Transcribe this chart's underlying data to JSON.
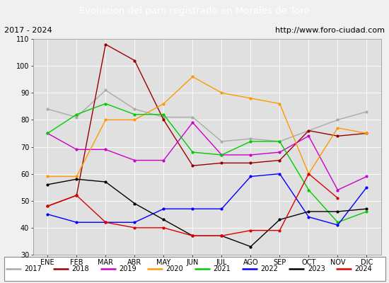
{
  "title": "Evolucion del paro registrado en Morales de Toro",
  "subtitle_left": "2017 - 2024",
  "subtitle_right": "http://www.foro-ciudad.com",
  "months": [
    "ENE",
    "FEB",
    "MAR",
    "ABR",
    "MAY",
    "JUN",
    "JUL",
    "AGO",
    "SEP",
    "OCT",
    "NOV",
    "DIC"
  ],
  "ylim": [
    30,
    110
  ],
  "yticks": [
    30,
    40,
    50,
    60,
    70,
    80,
    90,
    100,
    110
  ],
  "series": {
    "2017": {
      "color": "#aaaaaa",
      "values": [
        84,
        81,
        91,
        84,
        81,
        81,
        72,
        73,
        72,
        76,
        80,
        83
      ]
    },
    "2018": {
      "color": "#990000",
      "values": [
        48,
        52,
        108,
        102,
        80,
        63,
        64,
        64,
        65,
        76,
        74,
        75
      ]
    },
    "2019": {
      "color": "#cc00cc",
      "values": [
        75,
        69,
        69,
        65,
        65,
        79,
        67,
        67,
        68,
        74,
        54,
        59
      ]
    },
    "2020": {
      "color": "#ff9900",
      "values": [
        59,
        59,
        80,
        80,
        86,
        96,
        90,
        88,
        86,
        60,
        77,
        75
      ]
    },
    "2021": {
      "color": "#00cc00",
      "values": [
        75,
        82,
        86,
        82,
        82,
        68,
        67,
        72,
        72,
        54,
        42,
        46
      ]
    },
    "2022": {
      "color": "#0000ff",
      "values": [
        45,
        42,
        42,
        42,
        47,
        47,
        47,
        59,
        60,
        44,
        41,
        55
      ]
    },
    "2023": {
      "color": "#000000",
      "values": [
        56,
        58,
        57,
        49,
        43,
        37,
        37,
        33,
        43,
        46,
        46,
        47
      ]
    },
    "2024": {
      "color": "#dd0000",
      "values": [
        48,
        52,
        42,
        40,
        40,
        37,
        37,
        39,
        39,
        60,
        51
      ]
    }
  },
  "background_color": "#f0f0f0",
  "plot_bg_color": "#e0e0e0",
  "title_bg_color": "#5599dd",
  "title_color": "white",
  "header_bg_color": "#d8d8d8"
}
